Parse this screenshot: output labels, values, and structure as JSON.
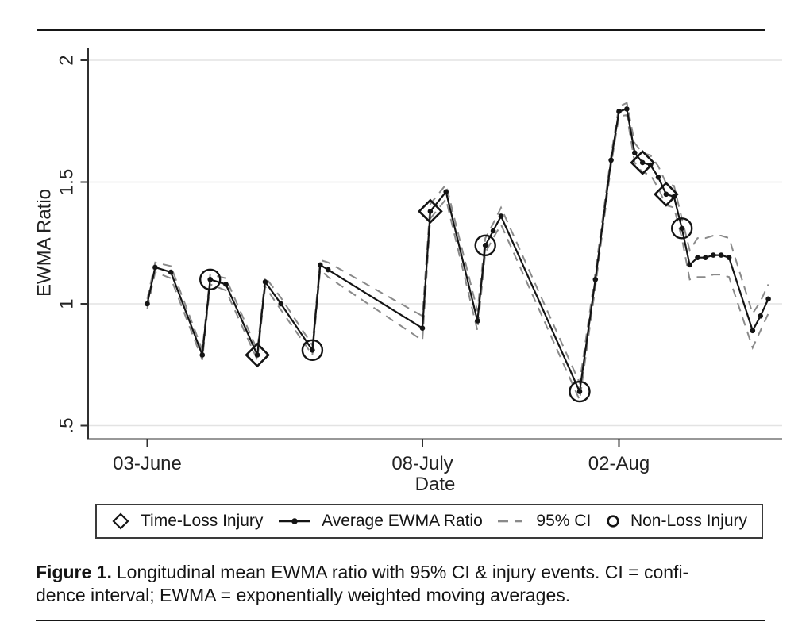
{
  "figure": {
    "caption_label": "Figure 1.",
    "caption_line1": "Longitudinal mean EWMA ratio with 95% CI & injury events. CI = confi-",
    "caption_line2": "dence interval; EWMA = exponentially weighted moving averages."
  },
  "legend": {
    "items": [
      {
        "icon": "diamond-icon",
        "label": "Time-Loss Injury"
      },
      {
        "icon": "line-dot-icon",
        "label": "Average EWMA Ratio"
      },
      {
        "icon": "dashes-icon",
        "label": "95% CI"
      },
      {
        "icon": "circle-icon",
        "label": "Non-Loss Injury"
      }
    ]
  },
  "chart_data": {
    "type": "line",
    "title": "",
    "xlabel": "Date",
    "ylabel": "EWMA Ratio",
    "ylim": [
      0.5,
      2
    ],
    "grid": true,
    "legend_position": "bottom",
    "series_name": "Average EWMA Ratio",
    "ci_name": "95% CI",
    "marker_legend": {
      "diamond": "Time-Loss Injury",
      "circle": "Non-Loss Injury"
    },
    "colors": {
      "line": "#141414",
      "ci": "#8a8a8a",
      "grid": "#e3e3e3",
      "axis": "#303030"
    },
    "y_ticks": [
      {
        "value": 2,
        "label": "2"
      },
      {
        "value": 1.5,
        "label": "1.5"
      },
      {
        "value": 1,
        "label": "1"
      },
      {
        "value": 0.5,
        "label": ".5"
      }
    ],
    "x_ticks": [
      {
        "day": 0,
        "label": "03-June"
      },
      {
        "day": 35,
        "label": "08-July"
      },
      {
        "day": 60,
        "label": "02-Aug"
      }
    ],
    "points": [
      {
        "day": 0,
        "date": "03-Jun",
        "value": 1.0,
        "marker": "none",
        "ci": 0.02
      },
      {
        "day": 1,
        "date": "04-Jun",
        "value": 1.15,
        "marker": "none",
        "ci": 0.02
      },
      {
        "day": 3,
        "date": "06-Jun",
        "value": 1.13,
        "marker": "none",
        "ci": 0.025
      },
      {
        "day": 7,
        "date": "10-Jun",
        "value": 0.79,
        "marker": "none",
        "ci": 0.02
      },
      {
        "day": 8,
        "date": "11-Jun",
        "value": 1.1,
        "marker": "circle",
        "ci": 0.02
      },
      {
        "day": 10,
        "date": "13-Jun",
        "value": 1.08,
        "marker": "none",
        "ci": 0.025
      },
      {
        "day": 14,
        "date": "17-Jun",
        "value": 0.79,
        "marker": "diamond",
        "ci": 0.02
      },
      {
        "day": 15,
        "date": "18-Jun",
        "value": 1.09,
        "marker": "none",
        "ci": 0.02
      },
      {
        "day": 17,
        "date": "20-Jun",
        "value": 1.0,
        "marker": "none",
        "ci": 0.025
      },
      {
        "day": 21,
        "date": "24-Jun",
        "value": 0.81,
        "marker": "circle",
        "ci": 0.02
      },
      {
        "day": 22,
        "date": "25-Jun",
        "value": 1.16,
        "marker": "none",
        "ci": 0.02
      },
      {
        "day": 23,
        "date": "26-Jun",
        "value": 1.14,
        "marker": "none",
        "ci": 0.03
      },
      {
        "day": 35,
        "date": "08-Jul",
        "value": 0.9,
        "marker": "none",
        "ci": 0.05
      },
      {
        "day": 36,
        "date": "09-Jul",
        "value": 1.38,
        "marker": "diamond",
        "ci": 0.03
      },
      {
        "day": 38,
        "date": "11-Jul",
        "value": 1.46,
        "marker": "none",
        "ci": 0.03
      },
      {
        "day": 42,
        "date": "15-Jul",
        "value": 0.93,
        "marker": "none",
        "ci": 0.04
      },
      {
        "day": 43,
        "date": "16-Jul",
        "value": 1.24,
        "marker": "circle",
        "ci": 0.03
      },
      {
        "day": 44,
        "date": "17-Jul",
        "value": 1.3,
        "marker": "none",
        "ci": 0.03
      },
      {
        "day": 45,
        "date": "18-Jul",
        "value": 1.36,
        "marker": "none",
        "ci": 0.035
      },
      {
        "day": 55,
        "date": "28-Jul",
        "value": 0.64,
        "marker": "circle",
        "ci": 0.035
      },
      {
        "day": 57,
        "date": "30-Jul",
        "value": 1.1,
        "marker": "none",
        "ci": 0.03
      },
      {
        "day": 59,
        "date": "01-Aug",
        "value": 1.59,
        "marker": "none",
        "ci": 0.02
      },
      {
        "day": 60,
        "date": "02-Aug",
        "value": 1.79,
        "marker": "none",
        "ci": 0.02
      },
      {
        "day": 61,
        "date": "03-Aug",
        "value": 1.8,
        "marker": "none",
        "ci": 0.025
      },
      {
        "day": 62,
        "date": "04-Aug",
        "value": 1.62,
        "marker": "none",
        "ci": 0.04
      },
      {
        "day": 63,
        "date": "05-Aug",
        "value": 1.58,
        "marker": "diamond",
        "ci": 0.04
      },
      {
        "day": 64,
        "date": "06-Aug",
        "value": 1.57,
        "marker": "none",
        "ci": 0.04
      },
      {
        "day": 65,
        "date": "07-Aug",
        "value": 1.52,
        "marker": "none",
        "ci": 0.045
      },
      {
        "day": 66,
        "date": "08-Aug",
        "value": 1.45,
        "marker": "diamond",
        "ci": 0.045
      },
      {
        "day": 67,
        "date": "09-Aug",
        "value": 1.44,
        "marker": "none",
        "ci": 0.045
      },
      {
        "day": 68,
        "date": "10-Aug",
        "value": 1.31,
        "marker": "circle",
        "ci": 0.04
      },
      {
        "day": 69,
        "date": "11-Aug",
        "value": 1.16,
        "marker": "none",
        "ci": 0.06
      },
      {
        "day": 70,
        "date": "12-Aug",
        "value": 1.19,
        "marker": "none",
        "ci": 0.08
      },
      {
        "day": 71,
        "date": "13-Aug",
        "value": 1.19,
        "marker": "none",
        "ci": 0.08
      },
      {
        "day": 72,
        "date": "14-Aug",
        "value": 1.2,
        "marker": "none",
        "ci": 0.08
      },
      {
        "day": 73,
        "date": "15-Aug",
        "value": 1.2,
        "marker": "none",
        "ci": 0.08
      },
      {
        "day": 74,
        "date": "16-Aug",
        "value": 1.19,
        "marker": "none",
        "ci": 0.08
      },
      {
        "day": 77,
        "date": "19-Aug",
        "value": 0.89,
        "marker": "none",
        "ci": 0.07
      },
      {
        "day": 78,
        "date": "20-Aug",
        "value": 0.95,
        "marker": "none",
        "ci": 0.06
      },
      {
        "day": 79,
        "date": "21-Aug",
        "value": 1.02,
        "marker": "none",
        "ci": 0.06
      }
    ]
  }
}
